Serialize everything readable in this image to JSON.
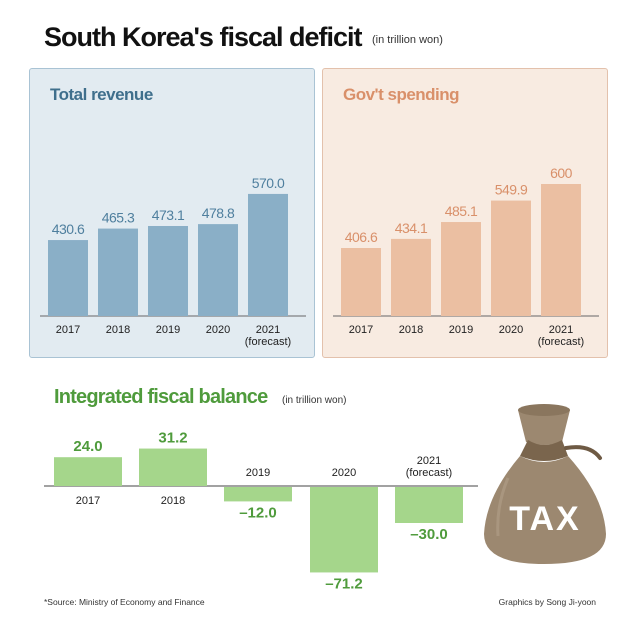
{
  "title": "South Korea's fiscal deficit",
  "title_unit": "(in trillion won)",
  "chart_data": [
    {
      "type": "bar",
      "title": "Total revenue",
      "categories": [
        "2017",
        "2018",
        "2019",
        "2020",
        "2021\n(forecast)"
      ],
      "values": [
        430.6,
        465.3,
        473.1,
        478.8,
        570.0
      ],
      "value_labels": [
        "430.6",
        "465.3",
        "473.1",
        "478.8",
        "570.0"
      ],
      "color": "#8aafc7",
      "label_color": "#4f7f9e"
    },
    {
      "type": "bar",
      "title": "Gov't spending",
      "categories": [
        "2017",
        "2018",
        "2019",
        "2020",
        "2021\n(forecast)"
      ],
      "values": [
        406.6,
        434.1,
        485.1,
        549.9,
        600
      ],
      "value_labels": [
        "406.6",
        "434.1",
        "485.1",
        "549.9",
        "600"
      ],
      "color": "#ebbfa2",
      "label_color": "#d9906a"
    },
    {
      "type": "bar",
      "title": "Integrated fiscal balance",
      "unit": "(in trillion won)",
      "categories": [
        "2017",
        "2018",
        "2019",
        "2020",
        "2021\n(forecast)"
      ],
      "values": [
        24.0,
        31.2,
        -12.0,
        -71.2,
        -30.0
      ],
      "value_labels": [
        "24.0",
        "31.2",
        "–12.0",
        "–71.2",
        "–30.0"
      ],
      "color": "#a5d68b",
      "label_color": "#4f9b3c"
    }
  ],
  "tax_label": "TAX",
  "source": "*Source: Ministry of Economy and Finance",
  "credit": "Graphics by Song Ji-yoon"
}
